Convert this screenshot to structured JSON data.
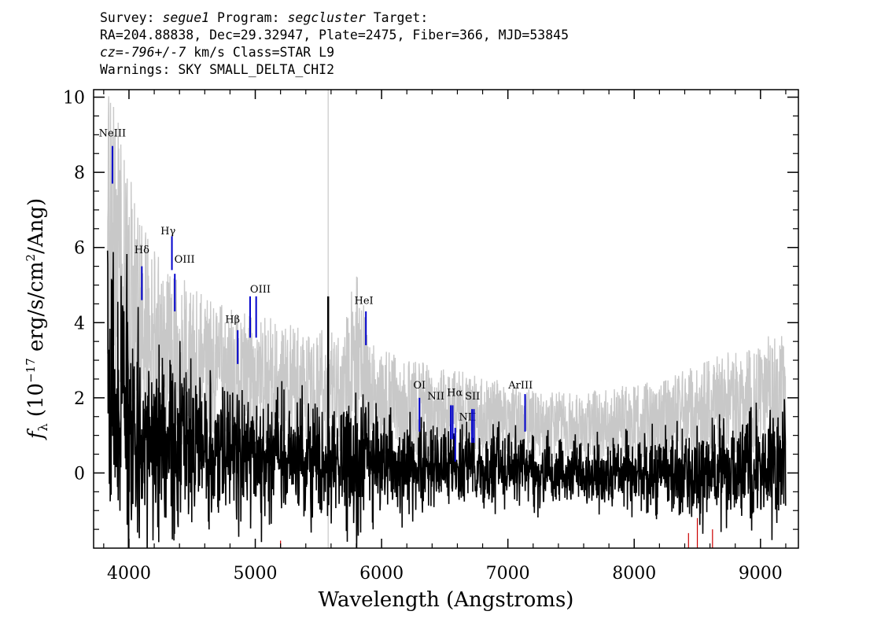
{
  "header": {
    "survey_label": "Survey:",
    "survey": "segue1",
    "program_label": "Program:",
    "program": "segcluster",
    "target_label": "Target:",
    "line2": "RA=204.88838, Dec=29.32947, Plate=2475, Fiber=366, MJD=53845",
    "cz_label": "cz=",
    "cz": "-796+/-7",
    "cz_rest": "km/s Class=STAR L9",
    "warnings": "Warnings: SKY SMALL_DELTA_CHI2"
  },
  "chart_data": {
    "type": "line",
    "xlabel": "Wavelength (Angstroms)",
    "ylabel": "f_λ (10^-17 erg/s/cm^2/Ang)",
    "xlim": [
      3720,
      9300
    ],
    "ylim": [
      -2,
      10.2
    ],
    "x_ticks": [
      4000,
      5000,
      6000,
      7000,
      8000,
      9000
    ],
    "y_ticks": [
      0,
      2,
      4,
      6,
      8,
      10
    ],
    "x_tick_labels": [
      "4000",
      "5000",
      "6000",
      "7000",
      "8000",
      "9000"
    ],
    "y_tick_labels": [
      "0",
      "2",
      "4",
      "6",
      "8",
      "10"
    ],
    "series": [
      {
        "role": "error",
        "color": "#c8c8c8",
        "x": [
          3830,
          3900,
          4000,
          4100,
          4200,
          4300,
          4400,
          4500,
          4600,
          4700,
          4800,
          4900,
          5000,
          5100,
          5200,
          5300,
          5400,
          5500,
          5600,
          5700,
          5800,
          5900,
          6000,
          6100,
          6200,
          6300,
          6400,
          6500,
          6600,
          6700,
          6800,
          6900,
          7000,
          7100,
          7200,
          7300,
          7400,
          7500,
          7600,
          7700,
          7800,
          7900,
          8000,
          8100,
          8200,
          8300,
          8400,
          8500,
          8600,
          8700,
          8800,
          8900,
          9000,
          9100,
          9200
        ],
        "y": [
          9.5,
          9.0,
          7.5,
          6.0,
          5.5,
          5.0,
          4.8,
          4.5,
          4.3,
          4.1,
          4.0,
          3.9,
          3.8,
          3.8,
          3.6,
          3.6,
          3.5,
          3.5,
          3.4,
          3.4,
          5.2,
          3.3,
          3.0,
          2.9,
          2.8,
          2.7,
          2.6,
          2.5,
          2.5,
          2.4,
          2.3,
          2.3,
          2.2,
          2.1,
          2.1,
          2.0,
          2.0,
          2.0,
          2.0,
          2.0,
          2.1,
          2.1,
          2.2,
          2.2,
          2.3,
          2.4,
          2.5,
          2.6,
          2.8,
          2.9,
          3.0,
          3.1,
          3.2,
          3.4,
          3.6
        ]
      },
      {
        "role": "flux",
        "color": "#000000",
        "x": [
          3830,
          3900,
          4000,
          4100,
          4200,
          4300,
          4400,
          4500,
          4600,
          4700,
          4800,
          4900,
          5000,
          5100,
          5200,
          5300,
          5400,
          5500,
          5600,
          5700,
          5800,
          5900,
          6000,
          6100,
          6200,
          6300,
          6400,
          6500,
          6600,
          6700,
          6800,
          6900,
          7000,
          7100,
          7200,
          7300,
          7400,
          7500,
          7600,
          7700,
          7800,
          7900,
          8000,
          8100,
          8200,
          8300,
          8400,
          8500,
          8600,
          8700,
          8800,
          8900,
          9000,
          9100,
          9200
        ],
        "y": [
          2.0,
          2.5,
          1.5,
          1.0,
          0.8,
          0.7,
          0.8,
          0.6,
          0.6,
          0.5,
          0.5,
          0.5,
          0.5,
          0.4,
          0.4,
          0.3,
          0.3,
          0.3,
          0.3,
          0.3,
          0.3,
          0.3,
          0.3,
          0.2,
          0.2,
          0.2,
          0.2,
          0.2,
          0.2,
          0.2,
          0.1,
          0.1,
          0.1,
          0.1,
          0.1,
          0.0,
          0.0,
          0.0,
          0.0,
          0.0,
          0.0,
          0.0,
          0.0,
          0.0,
          0.0,
          0.0,
          0.0,
          0.0,
          0.0,
          0.0,
          0.0,
          0.1,
          0.1,
          0.2,
          0.4
        ]
      }
    ],
    "lines": [
      {
        "label": "NeIII",
        "x": 3869,
        "y0": 7.7,
        "y1": 8.7,
        "tx": 3869,
        "ty": 8.95
      },
      {
        "label": "Hδ",
        "x": 4102,
        "y0": 4.6,
        "y1": 5.5,
        "tx": 4102,
        "ty": 5.85
      },
      {
        "label": "Hγ",
        "x": 4340,
        "y0": 5.4,
        "y1": 6.3,
        "tx": 4310,
        "ty": 6.35
      },
      {
        "label": "OIII",
        "x": 4363,
        "y0": 4.3,
        "y1": 5.3,
        "tx": 4440,
        "ty": 5.6
      },
      {
        "label": "Hβ",
        "x": 4861,
        "y0": 2.9,
        "y1": 3.8,
        "tx": 4820,
        "ty": 4.0
      },
      {
        "label": "OIII",
        "x": 4959,
        "y0": 3.6,
        "y1": 4.7,
        "tx": 5040,
        "ty": 4.8
      },
      {
        "label": "OIII",
        "x": 5007,
        "y0": 3.6,
        "y1": 4.7,
        "tx": null,
        "ty": null
      },
      {
        "label": "HeI",
        "x": 5876,
        "y0": 3.4,
        "y1": 4.3,
        "tx": 5860,
        "ty": 4.5
      },
      {
        "label": "OI",
        "x": 6300,
        "y0": 1.1,
        "y1": 2.0,
        "tx": 6300,
        "ty": 2.25
      },
      {
        "label": "NII",
        "x": 6548,
        "y0": 0.9,
        "y1": 1.8,
        "tx": 6430,
        "ty": 1.95
      },
      {
        "label": "Hα",
        "x": 6563,
        "y0": 0.9,
        "y1": 1.8,
        "tx": 6580,
        "ty": 2.05
      },
      {
        "label": "NII",
        "x": 6583,
        "y0": 0.3,
        "y1": 1.2,
        "tx": 6680,
        "ty": 1.4
      },
      {
        "label": "SII",
        "x": 6716,
        "y0": 0.8,
        "y1": 1.7,
        "tx": 6720,
        "ty": 1.95
      },
      {
        "label": "SII",
        "x": 6731,
        "y0": 0.8,
        "y1": 1.7,
        "tx": null,
        "ty": null
      },
      {
        "label": "ArIII",
        "x": 7136,
        "y0": 1.1,
        "y1": 2.1,
        "tx": 7100,
        "ty": 2.25
      }
    ],
    "line_marker_color": "#0000cc",
    "sky_markers": {
      "color": "#cc0000",
      "x": [
        5200,
        8430,
        8500,
        8620
      ],
      "y": [
        -1.8,
        -1.6,
        -1.2,
        -1.5
      ]
    },
    "sky_line_5577": {
      "x": 5577,
      "peak": 4.7
    }
  }
}
